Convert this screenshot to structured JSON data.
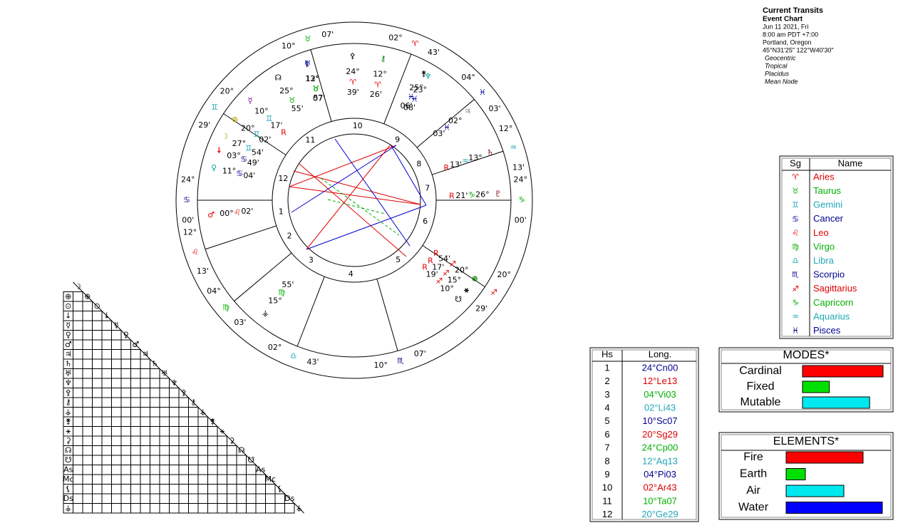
{
  "header": {
    "title": "Current Transits",
    "subtitle": "Event Chart",
    "lines": [
      "Jun 11 2021, Fri",
      "8:00 am  PDT +7:00",
      "Portland, Oregon",
      "45°N31'25\"  122°W40'30\""
    ],
    "settings": [
      "Geocentric",
      "Tropical",
      "Placidus",
      "Mean Node"
    ]
  },
  "signs": {
    "header": [
      "Sg",
      "Name"
    ],
    "rows": [
      {
        "glyph": "♈",
        "name": "Aries",
        "color": "#e00000"
      },
      {
        "glyph": "♉",
        "name": "Taurus",
        "color": "#00b000"
      },
      {
        "glyph": "♊",
        "name": "Gemini",
        "color": "#20a8b8"
      },
      {
        "glyph": "♋",
        "name": "Cancer",
        "color": "#000090"
      },
      {
        "glyph": "♌",
        "name": "Leo",
        "color": "#e00000"
      },
      {
        "glyph": "♍",
        "name": "Virgo",
        "color": "#00b000"
      },
      {
        "glyph": "♎",
        "name": "Libra",
        "color": "#20a8b8"
      },
      {
        "glyph": "♏",
        "name": "Scorpio",
        "color": "#000090"
      },
      {
        "glyph": "♐",
        "name": "Sagittarius",
        "color": "#e00000"
      },
      {
        "glyph": "♑",
        "name": "Capricorn",
        "color": "#00b000"
      },
      {
        "glyph": "♒",
        "name": "Aquarius",
        "color": "#20a8b8"
      },
      {
        "glyph": "♓",
        "name": "Pisces",
        "color": "#000090"
      }
    ]
  },
  "houses": {
    "header": [
      "Hs",
      "Long."
    ],
    "rows": [
      [
        "1",
        "24°Cn00"
      ],
      [
        "2",
        "12°Le13"
      ],
      [
        "3",
        "04°Vi03"
      ],
      [
        "4",
        "02°Li43"
      ],
      [
        "5",
        "10°Sc07"
      ],
      [
        "6",
        "20°Sg29"
      ],
      [
        "7",
        "24°Cp00"
      ],
      [
        "8",
        "12°Aq13"
      ],
      [
        "9",
        "04°Pi03"
      ],
      [
        "10",
        "02°Ar43"
      ],
      [
        "11",
        "10°Ta07"
      ],
      [
        "12",
        "20°Ge29"
      ]
    ]
  },
  "wheel": {
    "cusps": [
      {
        "deg": "24°",
        "sign": "♋",
        "min": "00'"
      },
      {
        "deg": "12°",
        "sign": "♌",
        "min": "13'"
      },
      {
        "deg": "04°",
        "sign": "♍",
        "min": "03'"
      },
      {
        "deg": "02°",
        "sign": "♎",
        "min": "43'"
      },
      {
        "deg": "10°",
        "sign": "♏",
        "min": "07'"
      },
      {
        "deg": "20°",
        "sign": "♐",
        "min": "29'"
      },
      {
        "deg": "24°",
        "sign": "♑",
        "min": "00'"
      },
      {
        "deg": "12°",
        "sign": "♒",
        "min": "13'"
      },
      {
        "deg": "04°",
        "sign": "♓",
        "min": "03'"
      },
      {
        "deg": "02°",
        "sign": "♈",
        "min": "43'"
      },
      {
        "deg": "10°",
        "sign": "♉",
        "min": "07'"
      },
      {
        "deg": "20°",
        "sign": "♊",
        "min": "29'"
      }
    ],
    "house_numbers": [
      "1",
      "2",
      "3",
      "4",
      "5",
      "6",
      "7",
      "8",
      "9",
      "10",
      "11",
      "12"
    ],
    "planets": [
      {
        "glyph": "☽",
        "color": "#c0a000",
        "deg": "27°",
        "sign": "♊",
        "min": "54'"
      },
      {
        "glyph": "⊙",
        "color": "#c0a000",
        "deg": "20°",
        "sign": "♊",
        "min": "02'"
      },
      {
        "glyph": "☿",
        "color": "#8000a0",
        "deg": "10°",
        "sign": "♊",
        "min": "17'",
        "retro": "R"
      },
      {
        "glyph": "♀",
        "color": "#00a0a0",
        "deg": "11°",
        "sign": "♋",
        "min": "04'"
      },
      {
        "glyph": "↓",
        "color": "#e00000",
        "deg": "03°",
        "sign": "♋",
        "min": "49'"
      },
      {
        "glyph": "♂",
        "color": "#e00000",
        "deg": "00°",
        "sign": "♌",
        "min": "02'"
      },
      {
        "glyph": "☊",
        "color": "#000000",
        "deg": "25°",
        "sign": "♉",
        "min": "55'"
      },
      {
        "glyph": "⚸",
        "color": "#000000",
        "deg": "13°",
        "sign": "♉",
        "min": "07'"
      },
      {
        "glyph": "♅",
        "color": "#0000c0",
        "deg": "12°",
        "sign": "♉",
        "min": "57'"
      },
      {
        "glyph": "⚴",
        "color": "#000000",
        "deg": "24°",
        "sign": "♈",
        "min": "39'"
      },
      {
        "glyph": "⚷",
        "color": "#008000",
        "deg": "12°",
        "sign": "♈",
        "min": "26'"
      },
      {
        "glyph": "⚵",
        "color": "#000000",
        "deg": "25°",
        "sign": "♓",
        "min": "06'"
      },
      {
        "glyph": "♆",
        "color": "#00a0a0",
        "deg": "23°",
        "sign": "♓",
        "min": "08'"
      },
      {
        "glyph": "♃",
        "color": "#888888",
        "deg": "02°",
        "sign": "♓",
        "min": "03'"
      },
      {
        "glyph": "♄",
        "color": "#800000",
        "deg": "13°",
        "sign": "♒",
        "min": "13'",
        "retro": "R"
      },
      {
        "glyph": "♇",
        "color": "#800000",
        "deg": "26°",
        "sign": "♑",
        "min": "21'",
        "retro": "R"
      },
      {
        "glyph": "⊕",
        "color": "#008000",
        "deg": "20°",
        "sign": "♐",
        "min": "54'",
        "retro": "R"
      },
      {
        "glyph": "⚹",
        "color": "#000000",
        "deg": "15°",
        "sign": "♐",
        "min": "17'",
        "retro": "R"
      },
      {
        "glyph": "☋",
        "color": "#000000",
        "deg": "10°",
        "sign": "♐",
        "min": "19'",
        "retro": "R"
      },
      {
        "glyph": "⚶",
        "color": "#000000",
        "deg": "15°",
        "sign": "♍",
        "min": "55'"
      }
    ]
  },
  "aspect_grid": {
    "labels": [
      "☽",
      "⊕",
      "⊙",
      "↓",
      "☿",
      "♀",
      "♂",
      "♃",
      "♄",
      "♅",
      "♆",
      "⚴",
      "⚷",
      "⚶",
      "⚵",
      "⚹",
      "⚳",
      "☊",
      "☋",
      "As",
      "Mc",
      "⚸",
      "Ds",
      "⚶"
    ]
  },
  "modes": {
    "title": "MODES*",
    "bars": [
      {
        "name": "Cardinal",
        "value": 6,
        "color": "#ff0000"
      },
      {
        "name": "Fixed",
        "value": 2,
        "color": "#00e000"
      },
      {
        "name": "Mutable",
        "value": 5,
        "color": "#00e8f0"
      }
    ]
  },
  "elements": {
    "title": "ELEMENTS*",
    "bars": [
      {
        "name": "Fire",
        "value": 4,
        "color": "#ff0000"
      },
      {
        "name": "Earth",
        "value": 1,
        "color": "#00e000"
      },
      {
        "name": "Air",
        "value": 3,
        "color": "#00e8f0"
      },
      {
        "name": "Water",
        "value": 5,
        "color": "#0000ff"
      }
    ]
  }
}
